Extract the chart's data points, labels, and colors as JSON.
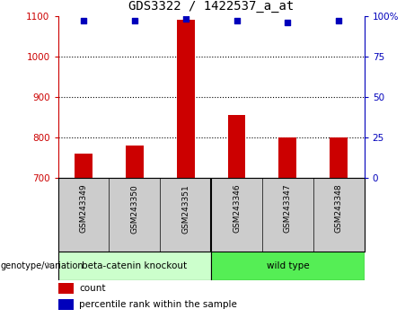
{
  "title": "GDS3322 / 1422537_a_at",
  "samples": [
    "GSM243349",
    "GSM243350",
    "GSM243351",
    "GSM243346",
    "GSM243347",
    "GSM243348"
  ],
  "counts": [
    760,
    780,
    1090,
    855,
    800,
    800
  ],
  "percentile_ranks": [
    97,
    97,
    98,
    97,
    96,
    97
  ],
  "ylim_left": [
    700,
    1100
  ],
  "ylim_right": [
    0,
    100
  ],
  "yticks_left": [
    700,
    800,
    900,
    1000,
    1100
  ],
  "yticks_right": [
    0,
    25,
    50,
    75,
    100
  ],
  "grid_values": [
    800,
    900,
    1000
  ],
  "bar_color": "#cc0000",
  "dot_color": "#0000bb",
  "group1_label": "beta-catenin knockout",
  "group1_color": "#ccffcc",
  "group2_label": "wild type",
  "group2_color": "#55ee55",
  "genotype_label": "genotype/variation",
  "legend_count": "count",
  "legend_percentile": "percentile rank within the sample",
  "tick_color_left": "#cc0000",
  "tick_color_right": "#0000bb",
  "bar_width": 0.35,
  "sample_area_color": "#cccccc",
  "fig_width": 4.61,
  "fig_height": 3.54,
  "dpi": 100
}
